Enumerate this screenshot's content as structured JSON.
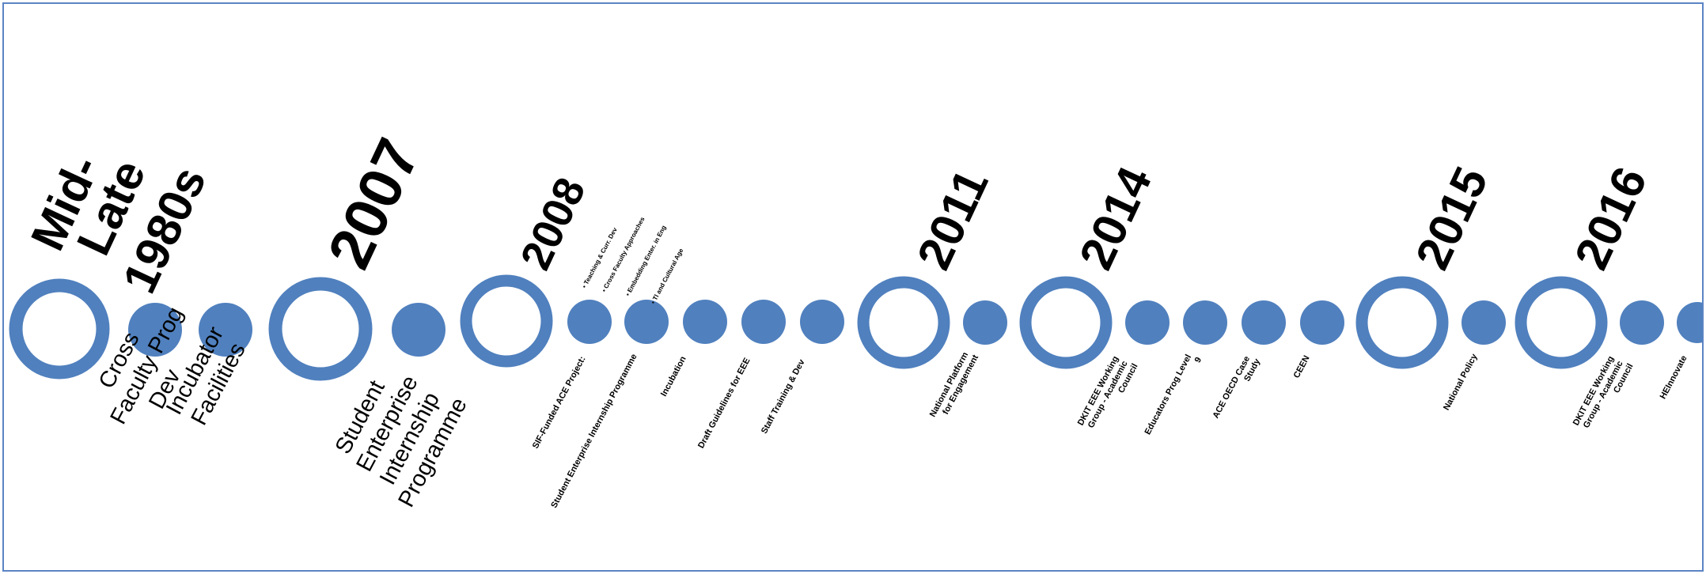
{
  "colors": {
    "node": "#5080be",
    "frame": "#5b84c4",
    "text": "#000000"
  },
  "milestones": [
    {
      "year_lines": [
        "Mid-",
        "Late",
        "1980s"
      ],
      "items": [
        "Cross Faculty Prog Dev",
        "Incubator Facilities"
      ]
    },
    {
      "year_lines": [
        "2007"
      ],
      "items": [
        "Student Enterprise Internship Programme"
      ]
    },
    {
      "year_lines": [
        "2008"
      ],
      "items": [
        "SIF-Funded ACE Project:",
        "Student Enterprise Internship Programme",
        "Incubation",
        "Draft Guidelines for EEE",
        "Staff Training & Dev"
      ],
      "bullets": [
        "Teaching & Curr. Dev",
        "Cross Faculty Approaches",
        "Embedding Enter. in Eng",
        "Tl and Cultural Age"
      ]
    },
    {
      "year_lines": [
        "2011"
      ],
      "items": [
        "National Platform for Engagement"
      ]
    },
    {
      "year_lines": [
        "2014"
      ],
      "items": [
        "DKIT EEE Working Group - Academic Council",
        "Educators Prog Level 9",
        "ACE OECD Case Study",
        "CEEN"
      ]
    },
    {
      "year_lines": [
        "2015"
      ],
      "items": [
        "National Policy"
      ]
    },
    {
      "year_lines": [
        "2016"
      ],
      "items": [
        "DKIT EEE Working Group - Academic Council",
        "HEInnovate"
      ]
    }
  ]
}
